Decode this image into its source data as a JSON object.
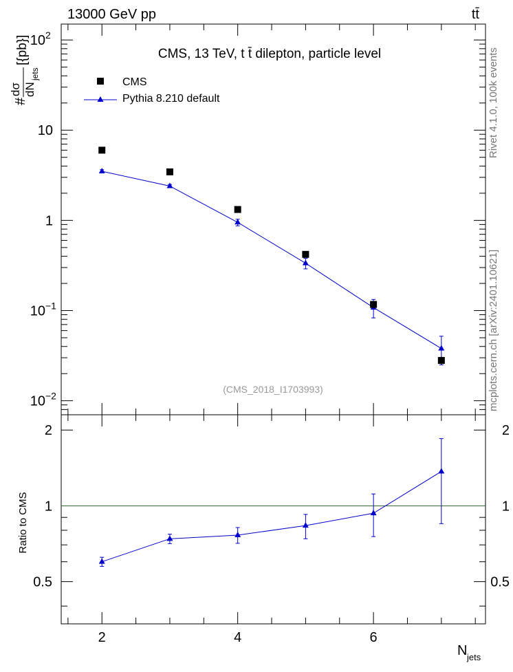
{
  "header": {
    "left": "13000 GeV pp",
    "right": "tt̄"
  },
  "side": {
    "rivet": "Rivet 4.1.0,  100k events",
    "source": "mcplots.cern.ch [arXiv:2401.10621]"
  },
  "chart_data": [
    {
      "type": "scatter",
      "title": "CMS, 13 TeV, t t̄ dilepton, particle level",
      "watermark": "(CMS_2018_I1703993)",
      "ylabel": "#dσ/dN_jets [{pb}]",
      "ylabel_parts": {
        "hash": "#",
        "numerator": "dσ",
        "denominator": "dN",
        "sub": "jets",
        "unit": "[{pb}]"
      },
      "yscale": "log",
      "ylim": [
        0.007,
        150
      ],
      "xlim": [
        1.4,
        7.65
      ],
      "yticks": [
        {
          "value": 0.01,
          "base": "10",
          "exp": "−2"
        },
        {
          "value": 0.1,
          "base": "10",
          "exp": "−1"
        },
        {
          "value": 1,
          "base": "1",
          "exp": ""
        },
        {
          "value": 10,
          "base": "10",
          "exp": ""
        },
        {
          "value": 100,
          "base": "10",
          "exp": "2"
        }
      ],
      "legend_position": "top-left",
      "series": [
        {
          "name": "CMS",
          "marker": "square",
          "color": "#000000",
          "x": [
            2,
            3,
            4,
            5,
            6,
            7
          ],
          "y": [
            6.0,
            3.45,
            1.32,
            0.42,
            0.117,
            0.028
          ],
          "err": [
            0.2,
            0.12,
            0.05,
            0.02,
            0.01,
            0.003
          ]
        },
        {
          "name": "Pythia 8.210 default",
          "marker": "triangle",
          "color": "#0000cc",
          "x": [
            2,
            3,
            4,
            5,
            6,
            7
          ],
          "y": [
            3.5,
            2.4,
            0.95,
            0.335,
            0.108,
            0.038
          ],
          "err_low": [
            0.15,
            0.1,
            0.08,
            0.045,
            0.025,
            0.013
          ],
          "err_high": [
            0.15,
            0.1,
            0.08,
            0.045,
            0.025,
            0.014
          ]
        }
      ]
    },
    {
      "type": "scatter",
      "ylabel": "Ratio to CMS",
      "xlabel": "N_jets",
      "xlabel_parts": {
        "main": "N",
        "sub": "jets"
      },
      "ylim": [
        0.34,
        2.3
      ],
      "xlim": [
        1.4,
        7.65
      ],
      "yticks": [
        0.5,
        1,
        2
      ],
      "ytick_labels": [
        "0.5",
        "1",
        "2"
      ],
      "xticks": [
        2,
        4,
        6
      ],
      "xtick_labels": [
        "2",
        "4",
        "6"
      ],
      "reference_line": 1,
      "reference_color": "#336633",
      "series": [
        {
          "name": "Pythia 8.210 default",
          "color": "#0000cc",
          "x": [
            2,
            3,
            4,
            5,
            6,
            7
          ],
          "y": [
            0.6,
            0.74,
            0.765,
            0.835,
            0.935,
            1.37
          ],
          "err_low": [
            0.025,
            0.032,
            0.055,
            0.095,
            0.18,
            0.52
          ],
          "err_high": [
            0.025,
            0.032,
            0.055,
            0.09,
            0.18,
            0.48
          ]
        }
      ]
    }
  ]
}
